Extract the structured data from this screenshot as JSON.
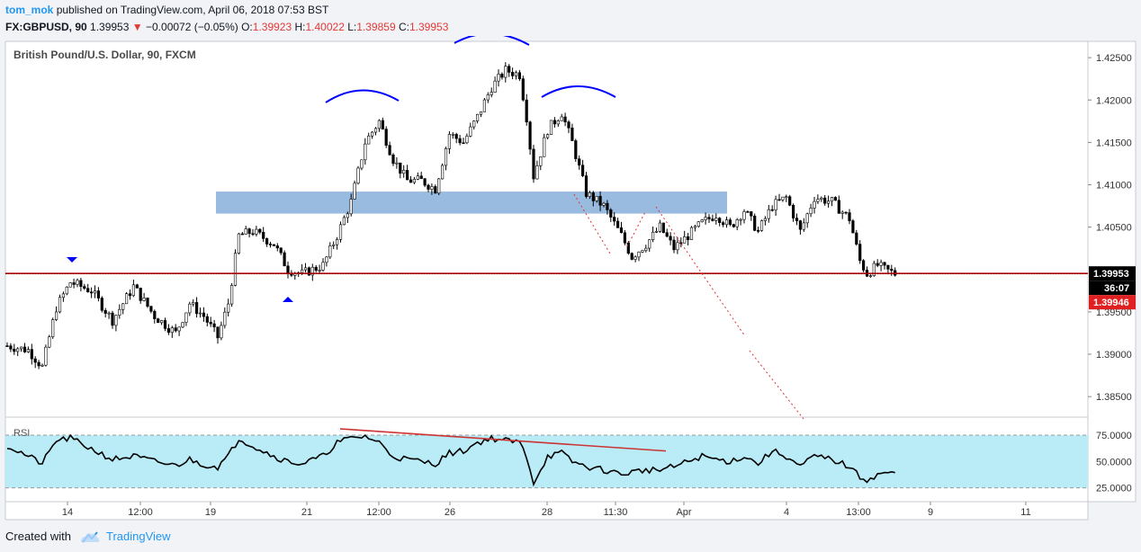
{
  "header": {
    "author": "tom_mok",
    "published": "published on TradingView.com, April 06, 2018 07:53 BST",
    "symbol": "FX:GBPUSD, 90",
    "last": "1.39953",
    "change_arrow": "▼",
    "change": "−0.00072 (−0.05%)",
    "o_label": "O:",
    "o": "1.39923",
    "h_label": "H:",
    "h": "1.40022",
    "l_label": "L:",
    "l": "1.39859",
    "c_label": "C:",
    "c": "1.39953"
  },
  "footer": {
    "created": "Created with",
    "brand": "TradingView",
    "logo_icon": "tradingview-cloud-icon"
  },
  "colors": {
    "bg": "#ffffff",
    "page": "#f1f3f6",
    "candle": "#000000",
    "resistance_zone": "#8fb4dd",
    "arcs": "#0000ff",
    "support_line": "#cc0000",
    "rsi_band": "#b9ecf7",
    "rsi_line": "#000000",
    "divergence": "#cc3333",
    "price_label": "#000000",
    "countdown_label": "#000000",
    "bid_label": "#e02020"
  },
  "chart_data": {
    "type": "candlestick",
    "title": "British Pound/U.S. Dollar, 90, FXCM",
    "ylim": [
      1.383,
      1.4265
    ],
    "yticks": [
      "1.42500",
      "1.42000",
      "1.41500",
      "1.41000",
      "1.40500",
      "1.39500",
      "1.39000",
      "1.38500"
    ],
    "x_labels": [
      "14",
      "12:00",
      "19",
      "21",
      "12:00",
      "26",
      "28",
      "11:30",
      "Apr",
      "4",
      "13:00",
      "9",
      "11"
    ],
    "price_labels": {
      "last": "1.39953",
      "countdown": "36:07",
      "bid": "1.39946"
    },
    "anchors": [
      [
        0,
        1.391
      ],
      [
        6,
        1.3905
      ],
      [
        10,
        1.3885
      ],
      [
        14,
        1.3955
      ],
      [
        18,
        1.3985
      ],
      [
        24,
        1.3975
      ],
      [
        30,
        1.394
      ],
      [
        36,
        1.398
      ],
      [
        42,
        1.3945
      ],
      [
        48,
        1.3925
      ],
      [
        52,
        1.396
      ],
      [
        56,
        1.3945
      ],
      [
        60,
        1.392
      ],
      [
        63,
        1.396
      ],
      [
        66,
        1.404
      ],
      [
        70,
        1.4045
      ],
      [
        76,
        1.403
      ],
      [
        80,
        1.4
      ],
      [
        84,
        1.3995
      ],
      [
        90,
        1.4005
      ],
      [
        94,
        1.404
      ],
      [
        98,
        1.408
      ],
      [
        102,
        1.415
      ],
      [
        106,
        1.4175
      ],
      [
        110,
        1.413
      ],
      [
        114,
        1.4105
      ],
      [
        118,
        1.4105
      ],
      [
        122,
        1.4095
      ],
      [
        126,
        1.416
      ],
      [
        130,
        1.415
      ],
      [
        134,
        1.418
      ],
      [
        138,
        1.4215
      ],
      [
        142,
        1.4235
      ],
      [
        146,
        1.423
      ],
      [
        148,
        1.418
      ],
      [
        150,
        1.411
      ],
      [
        154,
        1.4165
      ],
      [
        158,
        1.4185
      ],
      [
        161,
        1.415
      ],
      [
        165,
        1.409
      ],
      [
        170,
        1.4075
      ],
      [
        175,
        1.404
      ],
      [
        178,
        1.4015
      ],
      [
        182,
        1.403
      ],
      [
        186,
        1.405
      ],
      [
        190,
        1.4025
      ],
      [
        194,
        1.404
      ],
      [
        198,
        1.4055
      ],
      [
        202,
        1.4065
      ],
      [
        206,
        1.405
      ],
      [
        210,
        1.407
      ],
      [
        214,
        1.4045
      ],
      [
        218,
        1.4075
      ],
      [
        222,
        1.4085
      ],
      [
        226,
        1.4045
      ],
      [
        230,
        1.4085
      ],
      [
        235,
        1.408
      ],
      [
        240,
        1.406
      ],
      [
        243,
        1.401
      ],
      [
        245,
        1.3995
      ],
      [
        248,
        1.4005
      ],
      [
        250,
        1.4
      ],
      [
        253,
        1.3995
      ]
    ],
    "rsi": {
      "label": "RSI",
      "ylim": [
        17,
        87
      ],
      "levels": [
        75,
        25
      ],
      "yticks": [
        "75.0000",
        "50.0000",
        "25.0000"
      ],
      "anchors": [
        [
          0,
          65
        ],
        [
          6,
          55
        ],
        [
          10,
          48
        ],
        [
          14,
          70
        ],
        [
          18,
          72
        ],
        [
          24,
          62
        ],
        [
          30,
          52
        ],
        [
          36,
          55
        ],
        [
          42,
          50
        ],
        [
          48,
          46
        ],
        [
          52,
          52
        ],
        [
          56,
          47
        ],
        [
          60,
          45
        ],
        [
          63,
          55
        ],
        [
          66,
          72
        ],
        [
          70,
          65
        ],
        [
          76,
          55
        ],
        [
          80,
          50
        ],
        [
          84,
          48
        ],
        [
          90,
          55
        ],
        [
          94,
          68
        ],
        [
          98,
          72
        ],
        [
          102,
          74
        ],
        [
          106,
          68
        ],
        [
          110,
          55
        ],
        [
          114,
          52
        ],
        [
          118,
          50
        ],
        [
          122,
          48
        ],
        [
          126,
          58
        ],
        [
          130,
          60
        ],
        [
          134,
          68
        ],
        [
          138,
          72
        ],
        [
          142,
          70
        ],
        [
          146,
          68
        ],
        [
          148,
          55
        ],
        [
          150,
          30
        ],
        [
          154,
          55
        ],
        [
          158,
          58
        ],
        [
          161,
          50
        ],
        [
          165,
          45
        ],
        [
          170,
          42
        ],
        [
          175,
          38
        ],
        [
          178,
          40
        ],
        [
          182,
          42
        ],
        [
          186,
          42
        ],
        [
          190,
          45
        ],
        [
          194,
          50
        ],
        [
          198,
          55
        ],
        [
          202,
          52
        ],
        [
          206,
          50
        ],
        [
          210,
          55
        ],
        [
          214,
          48
        ],
        [
          218,
          60
        ],
        [
          222,
          55
        ],
        [
          226,
          45
        ],
        [
          230,
          55
        ],
        [
          235,
          52
        ],
        [
          240,
          45
        ],
        [
          243,
          35
        ],
        [
          245,
          33
        ],
        [
          248,
          37
        ],
        [
          250,
          40
        ],
        [
          253,
          38
        ]
      ]
    }
  }
}
